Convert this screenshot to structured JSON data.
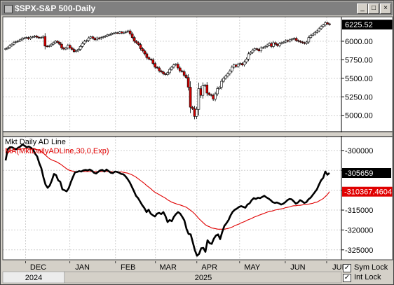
{
  "window": {
    "title": "$SPX-S&P 500-Daily",
    "controls": {
      "minimize": "_",
      "restore": "□",
      "close": "×"
    }
  },
  "toggles": [
    {
      "label": "Sym Lock",
      "checked": true
    },
    {
      "label": "Int Lock",
      "checked": true
    }
  ],
  "colors": {
    "background": "#ffffff",
    "frame": "#d4d0c8",
    "grid": "#d0d0d0",
    "down_candle": "#d40000",
    "up_candle": "#ffffff",
    "ad_line": "#000000",
    "ma_line": "#e00000",
    "badge_last": "#000000",
    "badge_ma": "#e00000"
  },
  "chart_data": [
    {
      "type": "candlestick",
      "title": "$SPX-S&P 500-Daily",
      "y_ticks": [
        5000,
        5250,
        5500,
        5750,
        6000
      ],
      "y_tick_labels": [
        "5000.00",
        "5250.00",
        "5500.00",
        "5750.00",
        "6000.00"
      ],
      "ylim": [
        4780,
        6330
      ],
      "last_value_label": "6225.52",
      "grid": true,
      "date_range": [
        "2024-11-18",
        "2025-07-03"
      ],
      "close": [
        5900,
        5915,
        5940,
        5960,
        5985,
        5995,
        6005,
        6020,
        6040,
        6045,
        6050,
        6035,
        6055,
        6060,
        6070,
        6055,
        6045,
        6050,
        6065,
        5935,
        5930,
        5940,
        5960,
        5980,
        6000,
        5985,
        5960,
        5910,
        5895,
        5910,
        5945,
        5910,
        5890,
        5860,
        5870,
        5890,
        5930,
        5970,
        6000,
        6010,
        6045,
        6060,
        6040,
        6020,
        6045,
        6035,
        6050,
        6060,
        6070,
        6085,
        6090,
        6105,
        6110,
        6115,
        6110,
        6125,
        6110,
        6120,
        6130,
        6140,
        6100,
        6050,
        6000,
        5980,
        5955,
        5900,
        5870,
        5830,
        5780,
        5760,
        5750,
        5700,
        5650,
        5640,
        5600,
        5585,
        5560,
        5550,
        5575,
        5620,
        5650,
        5680,
        5690,
        5640,
        5600,
        5590,
        5540,
        5510,
        5380,
        5110,
        5090,
        4985,
        5080,
        5360,
        5270,
        5400,
        5410,
        5300,
        5280,
        5270,
        5220,
        5290,
        5360,
        5380,
        5460,
        5500,
        5530,
        5560,
        5600,
        5650,
        5680,
        5660,
        5690,
        5700,
        5680,
        5720,
        5760,
        5830,
        5850,
        5880,
        5900,
        5890,
        5870,
        5910,
        5915,
        5930,
        5950,
        5970,
        5930,
        5980,
        5960,
        5940,
        5970,
        5980,
        5990,
        6010,
        6000,
        6020,
        6030,
        6040,
        6010,
        6000,
        5990,
        5980,
        5970,
        5990,
        6050,
        6080,
        6095,
        6120,
        6140,
        6170,
        6200,
        6220,
        6250,
        6235,
        6225
      ]
    },
    {
      "type": "line",
      "title": "Mkt Daily AD Line",
      "x_tick_labels": [
        "DEC",
        "JAN",
        "FEB",
        "MAR",
        "APR",
        "MAY",
        "JUN",
        "JUL"
      ],
      "x_tick_dates": [
        "2024-12-02",
        "2025-01-02",
        "2025-02-03",
        "2025-03-03",
        "2025-04-01",
        "2025-05-01",
        "2025-06-02",
        "2025-07-01"
      ],
      "year_labels": [
        "2024",
        "2025"
      ],
      "y_ticks": [
        -300000,
        -305000,
        -310000,
        -315000,
        -320000,
        -325000
      ],
      "y_tick_labels": [
        "-300000",
        "-305000",
        "-310000",
        "-315000",
        "-320000",
        "-325000"
      ],
      "ylim": [
        -327500,
        -296500
      ],
      "grid": true,
      "series": [
        {
          "name": "Mkt Daily AD Line",
          "last_value_label": "-305659",
          "values": [
            -302500,
            -299700,
            -299200,
            -299200,
            -299500,
            -299700,
            -299300,
            -299000,
            -298500,
            -298800,
            -299200,
            -299000,
            -299300,
            -299700,
            -300800,
            -301500,
            -303200,
            -304500,
            -306800,
            -308600,
            -309400,
            -308800,
            -307500,
            -305900,
            -306200,
            -307500,
            -307900,
            -309800,
            -310000,
            -310300,
            -309500,
            -308000,
            -306700,
            -305500,
            -305400,
            -305200,
            -305300,
            -305000,
            -304900,
            -305000,
            -304800,
            -305100,
            -305600,
            -305800,
            -305400,
            -305000,
            -304900,
            -305300,
            -304800,
            -305200,
            -305600,
            -305700,
            -305300,
            -305400,
            -305600,
            -305900,
            -306000,
            -306500,
            -307200,
            -308000,
            -309100,
            -310200,
            -311400,
            -312000,
            -312900,
            -313800,
            -314500,
            -315500,
            -314900,
            -315900,
            -316300,
            -316600,
            -315900,
            -315700,
            -316000,
            -315500,
            -316500,
            -318000,
            -317500,
            -317800,
            -316700,
            -316000,
            -315500,
            -315900,
            -316700,
            -317600,
            -319700,
            -321000,
            -321100,
            -323100,
            -325100,
            -326500,
            -326000,
            -324600,
            -324500,
            -325500,
            -322600,
            -323300,
            -323500,
            -322200,
            -321400,
            -321100,
            -322300,
            -320500,
            -319000,
            -318300,
            -317500,
            -316300,
            -315400,
            -314900,
            -314600,
            -314200,
            -314000,
            -314200,
            -314400,
            -313600,
            -313300,
            -312500,
            -312000,
            -312200,
            -311900,
            -312000,
            -311700,
            -311400,
            -311800,
            -312100,
            -312500,
            -313000,
            -313200,
            -313100,
            -313300,
            -313600,
            -313400,
            -313000,
            -312500,
            -312200,
            -312300,
            -312800,
            -313400,
            -313100,
            -312500,
            -312800,
            -313200,
            -313000,
            -312300,
            -311900,
            -311200,
            -310500,
            -309800,
            -308600,
            -307500,
            -306900,
            -305300,
            -306100,
            -305659
          ]
        },
        {
          "name": "MA(MktDailyADLine,30,0,Exp)",
          "last_value_label": "-310367.4604",
          "values": [
            -301800,
            -300700,
            -300200,
            -299900,
            -299800,
            -299700,
            -299700,
            -299700,
            -299600,
            -299600,
            -299600,
            -299600,
            -299600,
            -299600,
            -299700,
            -299800,
            -300000,
            -300300,
            -300700,
            -301200,
            -301700,
            -302100,
            -302400,
            -302600,
            -302800,
            -303100,
            -303400,
            -303800,
            -304200,
            -304600,
            -304900,
            -305100,
            -305200,
            -305300,
            -305300,
            -305300,
            -305300,
            -305300,
            -305300,
            -305300,
            -305300,
            -305300,
            -305300,
            -305300,
            -305300,
            -305300,
            -305300,
            -305300,
            -305300,
            -305300,
            -305300,
            -305400,
            -305400,
            -305400,
            -305400,
            -305400,
            -305500,
            -305600,
            -305700,
            -305900,
            -306100,
            -306400,
            -306700,
            -307100,
            -307500,
            -307900,
            -308300,
            -308800,
            -309200,
            -309600,
            -310100,
            -310500,
            -310800,
            -311100,
            -311400,
            -311700,
            -312000,
            -312400,
            -312700,
            -313000,
            -313200,
            -313400,
            -313600,
            -313700,
            -313900,
            -314100,
            -314300,
            -314700,
            -315100,
            -315500,
            -316000,
            -316600,
            -317200,
            -317700,
            -318200,
            -318700,
            -319000,
            -319200,
            -319500,
            -319600,
            -319700,
            -319800,
            -319800,
            -319800,
            -319800,
            -319700,
            -319600,
            -319400,
            -319200,
            -318900,
            -318700,
            -318500,
            -318200,
            -318000,
            -317800,
            -317500,
            -317300,
            -317100,
            -316800,
            -316600,
            -316400,
            -316200,
            -316000,
            -315800,
            -315600,
            -315400,
            -315300,
            -315200,
            -315000,
            -314900,
            -314800,
            -314700,
            -314600,
            -314400,
            -314300,
            -314200,
            -314000,
            -313900,
            -313900,
            -313800,
            -313800,
            -313700,
            -313600,
            -313600,
            -313500,
            -313400,
            -313300,
            -313100,
            -313000,
            -312700,
            -312400,
            -312100,
            -311600,
            -311100,
            -310367
          ]
        }
      ]
    }
  ]
}
